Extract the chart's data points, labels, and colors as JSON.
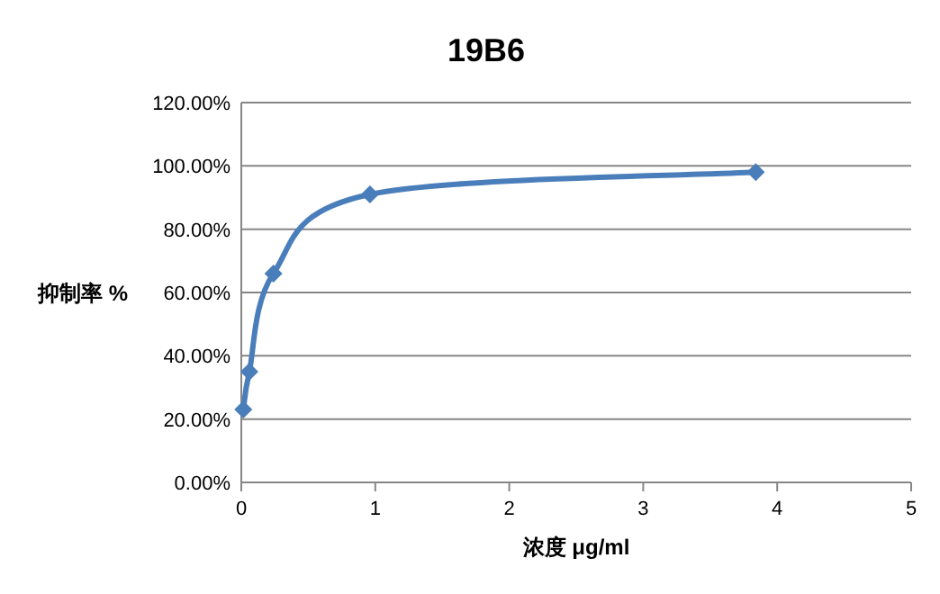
{
  "chart_data": {
    "type": "line",
    "title": "19B6",
    "xlabel": "浓度 μg/ml",
    "ylabel": "抑制率 %",
    "x": [
      0.015,
      0.06,
      0.24,
      0.96,
      3.84
    ],
    "series": [
      {
        "color": "#4a7ebb",
        "values": [
          23,
          35,
          66,
          91,
          98
        ]
      }
    ],
    "xlim": [
      0,
      5
    ],
    "xticks": [
      0,
      1,
      2,
      3,
      4,
      5
    ],
    "ylim": [
      0,
      120
    ],
    "yticks": [
      {
        "value": 0,
        "label": "0.00%"
      },
      {
        "value": 20,
        "label": "20.00%"
      },
      {
        "value": 40,
        "label": "40.00%"
      },
      {
        "value": 60,
        "label": "60.00%"
      },
      {
        "value": 80,
        "label": "80.00%"
      },
      {
        "value": 100,
        "label": "100.00%"
      },
      {
        "value": 120,
        "label": "120.00%"
      }
    ],
    "grid": "y",
    "marker": "diamond"
  }
}
